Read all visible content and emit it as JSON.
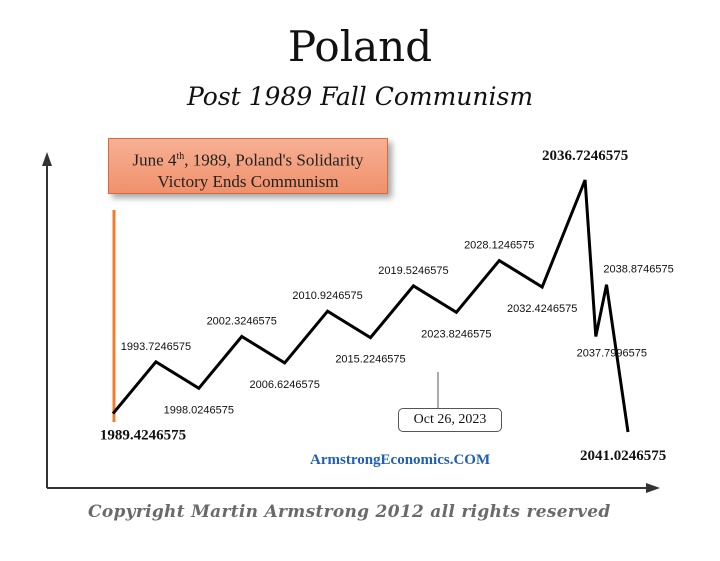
{
  "header": {
    "title": "Poland",
    "subtitle": "Post 1989 Fall Communism"
  },
  "event_box": {
    "line1_pre": "June 4",
    "line1_sup": "th",
    "line1_post": ", 1989, Poland's Solidarity",
    "line2": "Victory Ends Communism"
  },
  "callout": {
    "label": "Oct 26, 2023"
  },
  "watermark": "ArmstrongEconomics.COM",
  "copyright": "Copyright Martin Armstrong 2012 all rights reserved",
  "colors": {
    "line": "#000000",
    "box_fill": "#f4a07f",
    "marker_bar": "#f07d2e",
    "watermark": "#1f5fb4"
  },
  "chart_data": {
    "type": "line",
    "series": [
      {
        "x": [
          1989.4246575,
          1993.7246575,
          1998.0246575,
          2002.3246575,
          2006.6246575,
          2010.9246575,
          2015.2246575,
          2019.5246575,
          2023.8246575,
          2028.1246575,
          2032.4246575,
          2036.7246575,
          2037.7996575,
          2038.8746575,
          2041.0246575
        ],
        "labels": [
          "1989.4246575",
          "1993.7246575",
          "1998.0246575",
          "2002.3246575",
          "2006.6246575",
          "2010.9246575",
          "2015.2246575",
          "2019.5246575",
          "2023.8246575",
          "2028.1246575",
          "2032.4246575",
          "2036.7246575",
          "2037.7996575",
          "2038.8746575",
          "2041.0246575"
        ],
        "y": [
          0,
          45,
          22,
          67,
          44,
          89,
          66,
          111,
          88,
          133,
          110,
          203,
          67,
          112,
          -16
        ],
        "turning_point": [
          "start",
          "high",
          "low",
          "high",
          "low",
          "high",
          "low",
          "high",
          "low",
          "high",
          "low",
          "high",
          "low",
          "high",
          "end"
        ]
      }
    ],
    "axes": {
      "arrows": true,
      "ticks": false
    },
    "grid": false
  }
}
